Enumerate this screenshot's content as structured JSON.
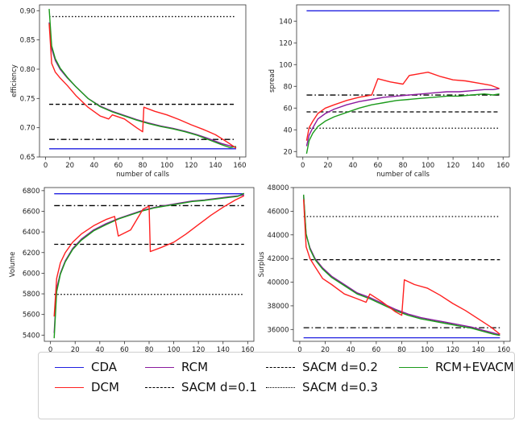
{
  "legend": {
    "entries": [
      {
        "key": "CDA",
        "label": "CDA",
        "color": "#1f1fe0",
        "dash": "solid"
      },
      {
        "key": "DCM",
        "label": "DCM",
        "color": "#ff2020",
        "dash": "solid"
      },
      {
        "key": "RCM",
        "label": "RCM",
        "color": "#8b1a9e",
        "dash": "solid"
      },
      {
        "key": "SACM01",
        "label": "SACM d=0.1",
        "color": "#000000",
        "dash": "dashdot"
      },
      {
        "key": "SACM02",
        "label": "SACM d=0.2",
        "color": "#000000",
        "dash": "dashed"
      },
      {
        "key": "SACM03",
        "label": "SACM d=0.3",
        "color": "#000000",
        "dash": "dotted"
      },
      {
        "key": "RCMEVACM",
        "label": "RCM+EVACM",
        "color": "#1a9a1a",
        "dash": "solid"
      }
    ]
  },
  "chart_data": [
    {
      "type": "line",
      "xlabel": "number of calls",
      "ylabel": "efficiency",
      "xlim": [
        -5,
        165
      ],
      "ylim": [
        0.65,
        0.91
      ],
      "xticks": [
        0,
        20,
        40,
        60,
        80,
        100,
        120,
        140,
        160
      ],
      "yticks": [
        0.65,
        0.7,
        0.75,
        0.8,
        0.85,
        0.9
      ],
      "ytick_labels": [
        "0.65",
        "0.70",
        "0.75",
        "0.80",
        "0.85",
        "0.90"
      ],
      "hlines": {
        "CDA": 0.664,
        "SACM01": 0.68,
        "SACM02": 0.74,
        "SACM03": 0.89
      },
      "x_range": [
        3,
        157
      ],
      "series": [
        {
          "key": "RCM",
          "x": [
            3,
            5,
            8,
            12,
            18,
            25,
            35,
            45,
            55,
            65,
            75,
            85,
            95,
            105,
            115,
            125,
            135,
            145,
            152,
            157
          ],
          "y": [
            0.88,
            0.835,
            0.815,
            0.8,
            0.785,
            0.77,
            0.75,
            0.737,
            0.728,
            0.721,
            0.714,
            0.708,
            0.703,
            0.699,
            0.694,
            0.688,
            0.681,
            0.673,
            0.669,
            0.667
          ]
        },
        {
          "key": "RCMEVACM",
          "x": [
            3,
            5,
            8,
            12,
            18,
            25,
            35,
            45,
            55,
            65,
            75,
            85,
            95,
            105,
            115,
            125,
            135,
            145,
            152,
            157
          ],
          "y": [
            0.903,
            0.84,
            0.818,
            0.802,
            0.786,
            0.77,
            0.75,
            0.736,
            0.727,
            0.72,
            0.713,
            0.707,
            0.702,
            0.698,
            0.693,
            0.687,
            0.679,
            0.671,
            0.666,
            0.668
          ]
        },
        {
          "key": "DCM",
          "x": [
            3,
            5,
            8,
            12,
            18,
            25,
            35,
            45,
            52,
            55,
            65,
            75,
            80,
            81,
            90,
            100,
            110,
            120,
            130,
            140,
            150,
            157
          ],
          "y": [
            0.878,
            0.81,
            0.795,
            0.785,
            0.772,
            0.755,
            0.735,
            0.72,
            0.715,
            0.722,
            0.715,
            0.7,
            0.693,
            0.735,
            0.728,
            0.722,
            0.714,
            0.705,
            0.697,
            0.688,
            0.675,
            0.665
          ]
        }
      ]
    },
    {
      "type": "line",
      "xlabel": "number of calls",
      "ylabel": "spread",
      "xlim": [
        -5,
        165
      ],
      "ylim": [
        15,
        155
      ],
      "xticks": [
        0,
        20,
        40,
        60,
        80,
        100,
        120,
        140,
        160
      ],
      "yticks": [
        20,
        40,
        60,
        80,
        100,
        120,
        140
      ],
      "ytick_labels": [
        "20",
        "40",
        "60",
        "80",
        "100",
        "120",
        "140"
      ],
      "hlines": {
        "CDA": 149.5,
        "SACM01": 72,
        "SACM02": 56.5,
        "SACM03": 41.5
      },
      "x_range": [
        3,
        157
      ],
      "series": [
        {
          "key": "RCM",
          "x": [
            3,
            5,
            8,
            12,
            18,
            25,
            35,
            45,
            55,
            65,
            75,
            85,
            95,
            105,
            115,
            125,
            135,
            145,
            152,
            157
          ],
          "y": [
            25,
            35,
            42,
            50,
            55,
            59,
            63,
            66,
            68,
            70,
            71,
            72,
            73,
            74,
            75,
            75,
            76,
            77,
            77,
            78
          ]
        },
        {
          "key": "RCMEVACM",
          "x": [
            3,
            5,
            8,
            12,
            18,
            25,
            35,
            45,
            55,
            65,
            75,
            85,
            95,
            105,
            115,
            125,
            135,
            145,
            152,
            157
          ],
          "y": [
            18,
            30,
            37,
            43,
            48,
            52,
            56,
            60,
            63,
            65,
            67,
            68,
            69,
            70,
            71,
            71,
            72,
            73,
            72,
            73
          ]
        },
        {
          "key": "DCM",
          "x": [
            3,
            5,
            8,
            12,
            18,
            25,
            35,
            45,
            55,
            60,
            70,
            80,
            85,
            90,
            100,
            110,
            120,
            130,
            140,
            150,
            157
          ],
          "y": [
            30,
            42,
            48,
            55,
            60,
            63,
            67,
            70,
            72,
            87,
            84,
            82,
            90,
            91,
            93,
            89,
            86,
            85,
            83,
            81,
            78
          ]
        }
      ]
    },
    {
      "type": "line",
      "xlabel": "number of calls",
      "ylabel": "Volume",
      "xlim": [
        -5,
        165
      ],
      "ylim": [
        5340,
        6830
      ],
      "xticks": [
        0,
        20,
        40,
        60,
        80,
        100,
        120,
        140,
        160
      ],
      "yticks": [
        5400,
        5600,
        5800,
        6000,
        6200,
        6400,
        6600,
        6800
      ],
      "ytick_labels": [
        "5400",
        "5600",
        "5800",
        "6000",
        "6200",
        "6400",
        "6600",
        "6800"
      ],
      "hlines": {
        "CDA": 6770,
        "SACM01": 6655,
        "SACM02": 6280,
        "SACM03": 5795
      },
      "x_range": [
        3,
        157
      ],
      "series": [
        {
          "key": "RCM",
          "x": [
            3,
            5,
            8,
            12,
            18,
            25,
            35,
            45,
            55,
            65,
            75,
            85,
            95,
            105,
            115,
            125,
            135,
            145,
            152,
            157
          ],
          "y": [
            5420,
            5850,
            6000,
            6120,
            6240,
            6330,
            6420,
            6480,
            6530,
            6570,
            6610,
            6640,
            6660,
            6680,
            6700,
            6710,
            6725,
            6740,
            6750,
            6760
          ]
        },
        {
          "key": "RCMEVACM",
          "x": [
            3,
            5,
            8,
            12,
            18,
            25,
            35,
            45,
            55,
            65,
            75,
            85,
            95,
            105,
            115,
            125,
            135,
            145,
            152,
            157
          ],
          "y": [
            5370,
            5820,
            5990,
            6110,
            6230,
            6320,
            6410,
            6470,
            6525,
            6565,
            6605,
            6635,
            6655,
            6675,
            6695,
            6705,
            6720,
            6735,
            6745,
            6775
          ]
        },
        {
          "key": "DCM",
          "x": [
            3,
            5,
            8,
            12,
            18,
            25,
            35,
            45,
            52,
            55,
            65,
            75,
            80,
            81,
            90,
            100,
            110,
            120,
            130,
            140,
            150,
            157
          ],
          "y": [
            5580,
            5950,
            6100,
            6200,
            6300,
            6380,
            6460,
            6520,
            6550,
            6360,
            6420,
            6620,
            6650,
            6210,
            6250,
            6300,
            6380,
            6470,
            6560,
            6640,
            6710,
            6750
          ]
        }
      ]
    },
    {
      "type": "line",
      "xlabel": "number of calls",
      "ylabel": "Surplus",
      "xlim": [
        -5,
        165
      ],
      "ylim": [
        35000,
        48000
      ],
      "xticks": [
        0,
        20,
        40,
        60,
        80,
        100,
        120,
        140,
        160
      ],
      "yticks": [
        36000,
        38000,
        40000,
        42000,
        44000,
        46000,
        48000
      ],
      "ytick_labels": [
        "36000",
        "38000",
        "40000",
        "42000",
        "44000",
        "46000",
        "48000"
      ],
      "hlines": {
        "CDA": 35300,
        "SACM01": 36150,
        "SACM02": 41900,
        "SACM03": 45550
      },
      "x_range": [
        3,
        157
      ],
      "series": [
        {
          "key": "RCM",
          "x": [
            3,
            5,
            8,
            12,
            18,
            25,
            35,
            45,
            55,
            65,
            75,
            85,
            95,
            105,
            115,
            125,
            135,
            145,
            152,
            157
          ],
          "y": [
            47300,
            44000,
            42900,
            42000,
            41200,
            40500,
            39800,
            39100,
            38700,
            38200,
            37700,
            37300,
            37000,
            36800,
            36600,
            36400,
            36200,
            35900,
            35700,
            35550
          ]
        },
        {
          "key": "RCMEVACM",
          "x": [
            3,
            5,
            8,
            12,
            18,
            25,
            35,
            45,
            55,
            65,
            75,
            85,
            95,
            105,
            115,
            125,
            135,
            145,
            152,
            157
          ],
          "y": [
            47400,
            44100,
            42800,
            41900,
            41100,
            40400,
            39700,
            39000,
            38600,
            38100,
            37600,
            37200,
            36900,
            36700,
            36500,
            36300,
            36100,
            35800,
            35600,
            35500
          ]
        },
        {
          "key": "DCM",
          "x": [
            3,
            5,
            8,
            12,
            18,
            25,
            35,
            45,
            52,
            55,
            65,
            75,
            80,
            82,
            90,
            100,
            110,
            120,
            130,
            140,
            150,
            157
          ],
          "y": [
            47000,
            43000,
            42000,
            41300,
            40300,
            39800,
            39000,
            38600,
            38300,
            39000,
            38300,
            37500,
            37200,
            40200,
            39800,
            39500,
            38900,
            38200,
            37600,
            36900,
            36200,
            35600
          ]
        }
      ]
    }
  ]
}
